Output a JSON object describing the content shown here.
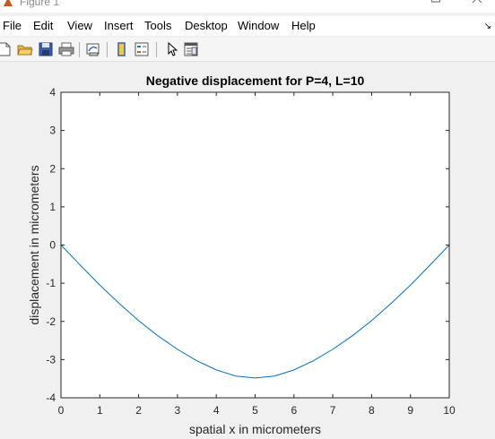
{
  "window": {
    "title": "Figure 1",
    "controls": [
      "minimize",
      "maximize",
      "close"
    ]
  },
  "menubar": {
    "items": [
      "File",
      "Edit",
      "View",
      "Insert",
      "Tools",
      "Desktop",
      "Window",
      "Help"
    ]
  },
  "toolbar": {
    "buttons": [
      "new-figure",
      "open-file",
      "save-figure",
      "print-figure",
      "link-plot",
      "insert-colorbar",
      "insert-legend",
      "edit-plot",
      "property-inspector"
    ]
  },
  "colors": {
    "line": "#0072BD",
    "axes_bg": "#ffffff",
    "figure_bg": "#f0f0f0"
  },
  "chart_data": {
    "type": "line",
    "title": "Negative displacement for P=4, L=10",
    "xlabel": "spatial x in micrometers",
    "ylabel": "displacement in micrometers",
    "xlim": [
      0,
      10
    ],
    "ylim": [
      -4,
      4
    ],
    "xticks": [
      "0",
      "1",
      "2",
      "3",
      "4",
      "5",
      "6",
      "7",
      "8",
      "9",
      "10"
    ],
    "yticks": [
      "-4",
      "-3",
      "-2",
      "-1",
      "0",
      "1",
      "2",
      "3",
      "4"
    ],
    "grid": false,
    "series": [
      {
        "x": [
          0,
          0.5,
          1,
          1.5,
          2,
          2.5,
          3,
          3.5,
          4,
          4.5,
          5,
          5.5,
          6,
          6.5,
          7,
          7.5,
          8,
          8.5,
          9,
          9.5,
          10
        ],
        "y": [
          0,
          -0.53,
          -1.05,
          -1.53,
          -1.98,
          -2.38,
          -2.73,
          -3.03,
          -3.27,
          -3.43,
          -3.48,
          -3.43,
          -3.27,
          -3.03,
          -2.73,
          -2.38,
          -1.98,
          -1.53,
          -1.05,
          -0.53,
          0
        ]
      }
    ]
  }
}
